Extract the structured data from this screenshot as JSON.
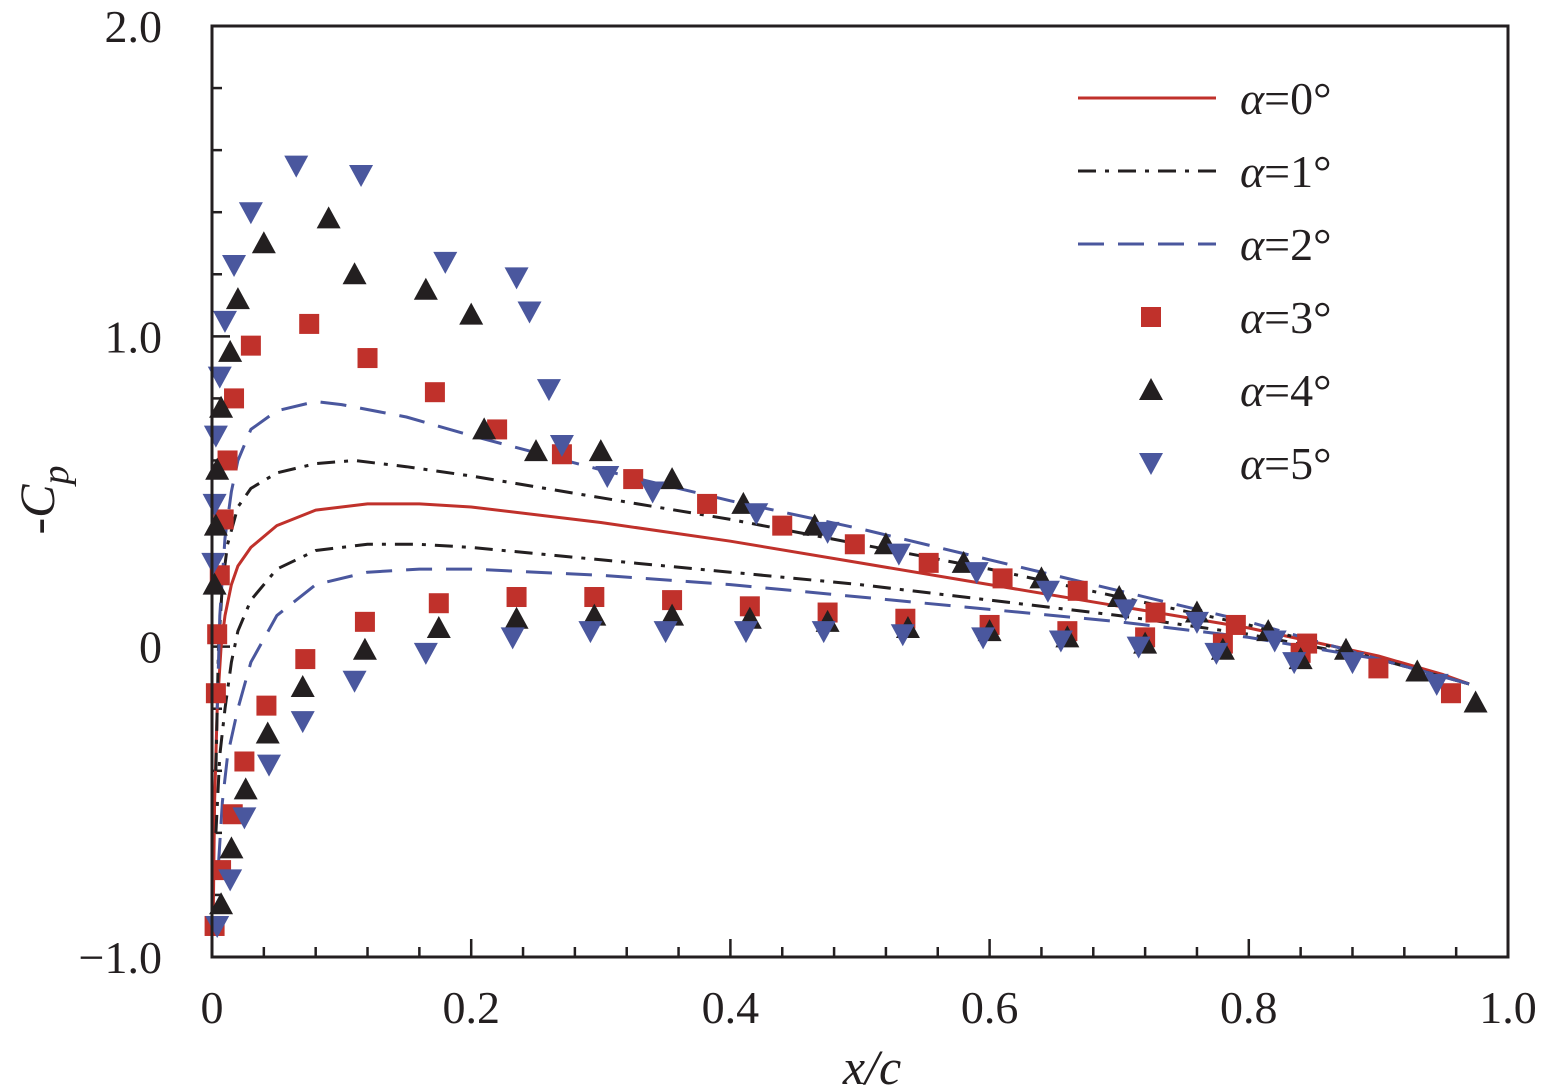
{
  "chart_data": {
    "type": "line+scatter",
    "title": "",
    "xlabel": "x/c",
    "ylabel": "-C_p",
    "ylabel_main": "-C",
    "ylabel_sub": "p",
    "xlim": [
      0,
      1.0
    ],
    "ylim": [
      -1.0,
      2.0
    ],
    "x_ticks": [
      {
        "value": 0,
        "label": "0"
      },
      {
        "value": 0.2,
        "label": "0.2"
      },
      {
        "value": 0.4,
        "label": "0.4"
      },
      {
        "value": 0.6,
        "label": "0.6"
      },
      {
        "value": 0.8,
        "label": "0.8"
      },
      {
        "value": 1.0,
        "label": "1.0"
      }
    ],
    "y_ticks": [
      {
        "value": -1.0,
        "label": "−1.0"
      },
      {
        "value": 0,
        "label": "0"
      },
      {
        "value": 1.0,
        "label": "1.0"
      },
      {
        "value": 2.0,
        "label": "2.0"
      }
    ],
    "minor_x_step": 0.04,
    "minor_y_step": 0.2,
    "legend_position": "top-right",
    "series": [
      {
        "name": "α=0°",
        "alpha": "α",
        "eq": "=0°",
        "kind": "line",
        "color": "#c0312b",
        "dash": "",
        "curves": [
          [
            [
              0.001,
              -0.85
            ],
            [
              0.002,
              -0.5
            ],
            [
              0.004,
              -0.2
            ],
            [
              0.007,
              0.0
            ],
            [
              0.01,
              0.1
            ],
            [
              0.015,
              0.2
            ],
            [
              0.02,
              0.26
            ],
            [
              0.03,
              0.32
            ],
            [
              0.05,
              0.39
            ],
            [
              0.08,
              0.44
            ],
            [
              0.12,
              0.46
            ],
            [
              0.16,
              0.46
            ],
            [
              0.2,
              0.45
            ],
            [
              0.3,
              0.4
            ],
            [
              0.4,
              0.34
            ],
            [
              0.5,
              0.27
            ],
            [
              0.6,
              0.2
            ],
            [
              0.7,
              0.13
            ],
            [
              0.8,
              0.06
            ],
            [
              0.9,
              -0.03
            ],
            [
              0.95,
              -0.09
            ],
            [
              0.97,
              -0.12
            ]
          ]
        ]
      },
      {
        "name": "α=1°",
        "alpha": "α",
        "eq": "=1°",
        "kind": "line",
        "color": "#231f20",
        "dash": "18,9,4,9",
        "curves": [
          [
            [
              0.003,
              -0.4
            ],
            [
              0.005,
              0.0
            ],
            [
              0.008,
              0.2
            ],
            [
              0.012,
              0.33
            ],
            [
              0.02,
              0.45
            ],
            [
              0.03,
              0.51
            ],
            [
              0.05,
              0.56
            ],
            [
              0.08,
              0.59
            ],
            [
              0.11,
              0.6
            ],
            [
              0.15,
              0.58
            ],
            [
              0.2,
              0.55
            ],
            [
              0.3,
              0.48
            ],
            [
              0.4,
              0.41
            ],
            [
              0.5,
              0.33
            ],
            [
              0.6,
              0.25
            ],
            [
              0.7,
              0.16
            ],
            [
              0.8,
              0.07
            ],
            [
              0.9,
              -0.04
            ],
            [
              0.97,
              -0.12
            ]
          ],
          [
            [
              0.003,
              -0.6
            ],
            [
              0.006,
              -0.35
            ],
            [
              0.01,
              -0.2
            ],
            [
              0.015,
              -0.05
            ],
            [
              0.02,
              0.05
            ],
            [
              0.03,
              0.15
            ],
            [
              0.05,
              0.25
            ],
            [
              0.08,
              0.31
            ],
            [
              0.12,
              0.33
            ],
            [
              0.16,
              0.33
            ],
            [
              0.2,
              0.32
            ],
            [
              0.3,
              0.28
            ],
            [
              0.4,
              0.24
            ],
            [
              0.5,
              0.2
            ],
            [
              0.6,
              0.15
            ],
            [
              0.7,
              0.1
            ],
            [
              0.8,
              0.04
            ],
            [
              0.9,
              -0.04
            ],
            [
              0.97,
              -0.12
            ]
          ]
        ]
      },
      {
        "name": "α=2°",
        "alpha": "α",
        "eq": "=2°",
        "kind": "line",
        "color": "#4a579e",
        "dash": "26,14",
        "curves": [
          [
            [
              0.004,
              -0.2
            ],
            [
              0.006,
              0.1
            ],
            [
              0.01,
              0.35
            ],
            [
              0.015,
              0.5
            ],
            [
              0.02,
              0.6
            ],
            [
              0.03,
              0.7
            ],
            [
              0.05,
              0.76
            ],
            [
              0.08,
              0.79
            ],
            [
              0.1,
              0.78
            ],
            [
              0.15,
              0.74
            ],
            [
              0.2,
              0.68
            ],
            [
              0.3,
              0.57
            ],
            [
              0.4,
              0.47
            ],
            [
              0.5,
              0.38
            ],
            [
              0.6,
              0.28
            ],
            [
              0.7,
              0.18
            ],
            [
              0.8,
              0.08
            ],
            [
              0.9,
              -0.04
            ],
            [
              0.97,
              -0.12
            ]
          ],
          [
            [
              0.005,
              -0.7
            ],
            [
              0.008,
              -0.5
            ],
            [
              0.012,
              -0.35
            ],
            [
              0.02,
              -0.2
            ],
            [
              0.03,
              -0.05
            ],
            [
              0.05,
              0.1
            ],
            [
              0.08,
              0.2
            ],
            [
              0.12,
              0.24
            ],
            [
              0.16,
              0.25
            ],
            [
              0.2,
              0.25
            ],
            [
              0.3,
              0.23
            ],
            [
              0.4,
              0.2
            ],
            [
              0.5,
              0.16
            ],
            [
              0.6,
              0.12
            ],
            [
              0.7,
              0.08
            ],
            [
              0.8,
              0.03
            ],
            [
              0.9,
              -0.04
            ],
            [
              0.97,
              -0.12
            ]
          ]
        ]
      },
      {
        "name": "α=3°",
        "alpha": "α",
        "eq": "=3°",
        "kind": "scatter",
        "marker": "square",
        "color": "#c0312b",
        "points": [
          [
            0.002,
            -0.9
          ],
          [
            0.003,
            -0.15
          ],
          [
            0.004,
            0.04
          ],
          [
            0.006,
            0.23
          ],
          [
            0.009,
            0.41
          ],
          [
            0.012,
            0.6
          ],
          [
            0.017,
            0.8
          ],
          [
            0.03,
            0.97
          ],
          [
            0.075,
            1.04
          ],
          [
            0.12,
            0.93
          ],
          [
            0.172,
            0.82
          ],
          [
            0.22,
            0.7
          ],
          [
            0.27,
            0.62
          ],
          [
            0.325,
            0.54
          ],
          [
            0.382,
            0.46
          ],
          [
            0.44,
            0.39
          ],
          [
            0.496,
            0.33
          ],
          [
            0.553,
            0.27
          ],
          [
            0.61,
            0.22
          ],
          [
            0.668,
            0.18
          ],
          [
            0.728,
            0.11
          ],
          [
            0.79,
            0.07
          ],
          [
            0.845,
            0.01
          ],
          [
            0.9,
            -0.07
          ],
          [
            0.956,
            -0.15
          ],
          [
            0.007,
            -0.72
          ],
          [
            0.016,
            -0.54
          ],
          [
            0.025,
            -0.37
          ],
          [
            0.042,
            -0.19
          ],
          [
            0.072,
            -0.04
          ],
          [
            0.118,
            0.08
          ],
          [
            0.175,
            0.14
          ],
          [
            0.235,
            0.16
          ],
          [
            0.295,
            0.16
          ],
          [
            0.355,
            0.15
          ],
          [
            0.415,
            0.13
          ],
          [
            0.475,
            0.11
          ],
          [
            0.535,
            0.09
          ],
          [
            0.6,
            0.07
          ],
          [
            0.66,
            0.05
          ],
          [
            0.72,
            0.03
          ],
          [
            0.78,
            0.01
          ],
          [
            0.84,
            -0.02
          ]
        ]
      },
      {
        "name": "α=4°",
        "alpha": "α",
        "eq": "=4°",
        "kind": "scatter",
        "marker": "triangle-up",
        "color": "#231f20",
        "points": [
          [
            0.002,
            0.2
          ],
          [
            0.003,
            0.39
          ],
          [
            0.004,
            0.57
          ],
          [
            0.007,
            0.77
          ],
          [
            0.014,
            0.95
          ],
          [
            0.02,
            1.12
          ],
          [
            0.04,
            1.3
          ],
          [
            0.09,
            1.38
          ],
          [
            0.11,
            1.2
          ],
          [
            0.165,
            1.15
          ],
          [
            0.2,
            1.07
          ],
          [
            0.21,
            0.7
          ],
          [
            0.25,
            0.63
          ],
          [
            0.3,
            0.63
          ],
          [
            0.355,
            0.54
          ],
          [
            0.41,
            0.46
          ],
          [
            0.465,
            0.39
          ],
          [
            0.52,
            0.33
          ],
          [
            0.58,
            0.27
          ],
          [
            0.64,
            0.22
          ],
          [
            0.7,
            0.16
          ],
          [
            0.76,
            0.11
          ],
          [
            0.815,
            0.05
          ],
          [
            0.875,
            -0.01
          ],
          [
            0.93,
            -0.08
          ],
          [
            0.975,
            -0.18
          ],
          [
            0.007,
            -0.83
          ],
          [
            0.015,
            -0.65
          ],
          [
            0.026,
            -0.46
          ],
          [
            0.043,
            -0.28
          ],
          [
            0.07,
            -0.13
          ],
          [
            0.118,
            -0.01
          ],
          [
            0.175,
            0.06
          ],
          [
            0.235,
            0.09
          ],
          [
            0.295,
            0.1
          ],
          [
            0.355,
            0.1
          ],
          [
            0.415,
            0.09
          ],
          [
            0.475,
            0.08
          ],
          [
            0.537,
            0.06
          ],
          [
            0.6,
            0.05
          ],
          [
            0.66,
            0.03
          ],
          [
            0.72,
            0.01
          ],
          [
            0.78,
            -0.01
          ],
          [
            0.84,
            -0.04
          ]
        ]
      },
      {
        "name": "α=5°",
        "alpha": "α",
        "eq": "=5°",
        "kind": "scatter",
        "marker": "triangle-down",
        "color": "#4a579e",
        "points": [
          [
            0.001,
            0.27
          ],
          [
            0.002,
            0.46
          ],
          [
            0.003,
            0.68
          ],
          [
            0.006,
            0.87
          ],
          [
            0.01,
            1.05
          ],
          [
            0.017,
            1.23
          ],
          [
            0.03,
            1.4
          ],
          [
            0.065,
            1.55
          ],
          [
            0.115,
            1.52
          ],
          [
            0.18,
            1.24
          ],
          [
            0.235,
            1.19
          ],
          [
            0.245,
            1.08
          ],
          [
            0.26,
            0.83
          ],
          [
            0.27,
            0.65
          ],
          [
            0.305,
            0.55
          ],
          [
            0.34,
            0.5
          ],
          [
            0.42,
            0.43
          ],
          [
            0.475,
            0.37
          ],
          [
            0.53,
            0.3
          ],
          [
            0.59,
            0.24
          ],
          [
            0.645,
            0.18
          ],
          [
            0.705,
            0.12
          ],
          [
            0.76,
            0.08
          ],
          [
            0.82,
            0.02
          ],
          [
            0.88,
            -0.05
          ],
          [
            0.945,
            -0.12
          ],
          [
            0.004,
            -0.9
          ],
          [
            0.014,
            -0.75
          ],
          [
            0.025,
            -0.55
          ],
          [
            0.044,
            -0.38
          ],
          [
            0.07,
            -0.24
          ],
          [
            0.11,
            -0.11
          ],
          [
            0.165,
            -0.02
          ],
          [
            0.232,
            0.03
          ],
          [
            0.292,
            0.05
          ],
          [
            0.35,
            0.05
          ],
          [
            0.412,
            0.05
          ],
          [
            0.472,
            0.05
          ],
          [
            0.533,
            0.04
          ],
          [
            0.595,
            0.03
          ],
          [
            0.655,
            0.02
          ],
          [
            0.715,
            0.0
          ],
          [
            0.775,
            -0.02
          ],
          [
            0.835,
            -0.05
          ]
        ]
      }
    ]
  }
}
